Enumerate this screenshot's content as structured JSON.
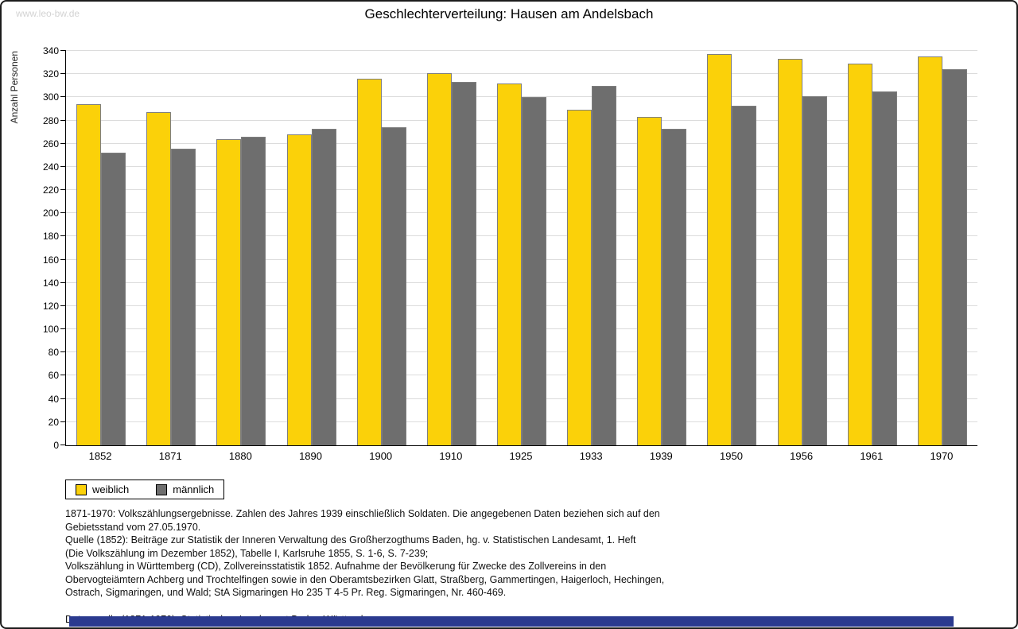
{
  "watermark": "www.leo-bw.de",
  "chart_data": {
    "type": "bar",
    "title": "Geschlechterverteilung: Hausen am Andelsbach",
    "xlabel": "",
    "ylabel": "Anzahl Personen",
    "categories": [
      "1852",
      "1871",
      "1880",
      "1890",
      "1900",
      "1910",
      "1925",
      "1933",
      "1939",
      "1950",
      "1956",
      "1961",
      "1970"
    ],
    "series": [
      {
        "name": "weiblich",
        "color": "#FBD109",
        "values": [
          294,
          287,
          264,
          268,
          316,
          321,
          312,
          289,
          283,
          337,
          333,
          329,
          335
        ]
      },
      {
        "name": "männlich",
        "color": "#6E6E6E",
        "values": [
          252,
          256,
          266,
          273,
          274,
          313,
          300,
          310,
          273,
          293,
          301,
          305,
          324
        ]
      }
    ],
    "ylim": [
      0,
      340
    ],
    "ytick_step": 20,
    "grid": true,
    "legend_position": "bottom-left"
  },
  "notes": {
    "paragraphs": [
      [
        "1871-1970: Volkszählungsergebnisse. Zahlen des Jahres 1939 einschließlich Soldaten. Die angegebenen Daten beziehen sich auf den",
        "Gebietsstand vom 27.05.1970.",
        "Quelle (1852): Beiträge zur Statistik der Inneren Verwaltung des Großherzogthums Baden, hg. v. Statistischen Landesamt, 1. Heft",
        "(Die Volkszählung im Dezember 1852), Tabelle I, Karlsruhe 1855, S. 1-6, S. 7-239;",
        "Volkszählung in Württemberg (CD), Zollvereinsstatistik 1852. Aufnahme der Bevölkerung für Zwecke des Zollvereins in den",
        "Obervogteiämtern Achberg und Trochtelfingen sowie in den Oberamtsbezirken Glatt, Straßberg, Gammertingen, Haigerloch, Hechingen,",
        "Ostrach, Sigmaringen, und Wald; StA Sigmaringen Ho 235 T 4-5 Pr. Reg. Sigmaringen, Nr. 460-469."
      ],
      [
        "Datenquelle (1871-1970): Statistisches Landesamt Baden-Württemberg."
      ]
    ]
  },
  "colors": {
    "weiblich": "#FBD109",
    "maennlich": "#6E6E6E",
    "gridline": "#DCDCDC",
    "bar_border": "#7F7F7F",
    "footer_bar": "#2B3A8F"
  }
}
